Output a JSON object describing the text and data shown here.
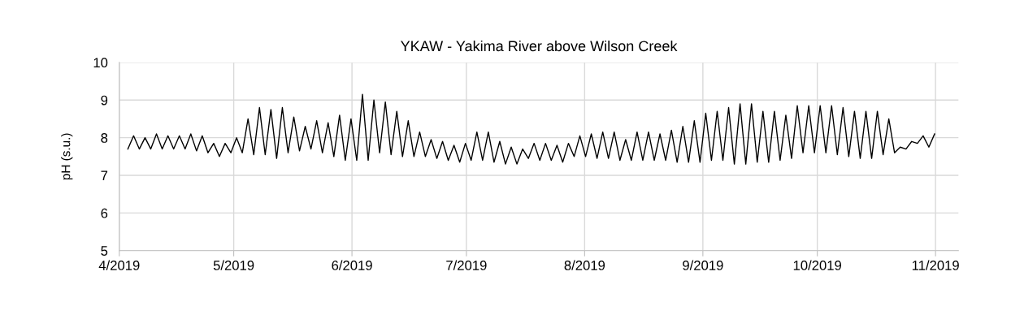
{
  "chart_data": {
    "type": "line",
    "title": "YKAW - Yakima River above Wilson Creek",
    "ylabel": "pH (s.u.)",
    "xlim": [
      "2019-04-01",
      "2019-11-07"
    ],
    "xticks": [
      {
        "value": "2019-04-01",
        "label": "4/2019"
      },
      {
        "value": "2019-05-01",
        "label": "5/2019"
      },
      {
        "value": "2019-06-01",
        "label": "6/2019"
      },
      {
        "value": "2019-07-01",
        "label": "7/2019"
      },
      {
        "value": "2019-08-01",
        "label": "8/2019"
      },
      {
        "value": "2019-09-01",
        "label": "9/2019"
      },
      {
        "value": "2019-10-01",
        "label": "10/2019"
      },
      {
        "value": "2019-11-01",
        "label": "11/2019"
      }
    ],
    "ylim": [
      5,
      10
    ],
    "yticks": [
      5,
      6,
      7,
      8,
      9,
      10
    ],
    "grid": true,
    "marker": "none",
    "line_style": "solid",
    "series": [
      {
        "color": "#000000",
        "x": [
          "2019-04-03T06:00",
          "2019-04-04T18:00",
          "2019-04-06T06:00",
          "2019-04-07T18:00",
          "2019-04-09T06:00",
          "2019-04-10T18:00",
          "2019-04-12T06:00",
          "2019-04-13T18:00",
          "2019-04-15T06:00",
          "2019-04-16T18:00",
          "2019-04-18T06:00",
          "2019-04-19T18:00",
          "2019-04-21T06:00",
          "2019-04-22T18:00",
          "2019-04-24T06:00",
          "2019-04-25T18:00",
          "2019-04-27T06:00",
          "2019-04-28T18:00",
          "2019-04-30T06:00",
          "2019-05-01T18:00",
          "2019-05-03T06:00",
          "2019-05-04T18:00",
          "2019-05-06T06:00",
          "2019-05-07T18:00",
          "2019-05-09T06:00",
          "2019-05-10T18:00",
          "2019-05-12T06:00",
          "2019-05-13T18:00",
          "2019-05-15T06:00",
          "2019-05-16T18:00",
          "2019-05-18T06:00",
          "2019-05-19T18:00",
          "2019-05-21T06:00",
          "2019-05-22T18:00",
          "2019-05-24T06:00",
          "2019-05-25T18:00",
          "2019-05-27T06:00",
          "2019-05-28T18:00",
          "2019-05-30T06:00",
          "2019-05-31T18:00",
          "2019-06-02T06:00",
          "2019-06-03T18:00",
          "2019-06-05T06:00",
          "2019-06-06T18:00",
          "2019-06-08T06:00",
          "2019-06-09T18:00",
          "2019-06-11T06:00",
          "2019-06-12T18:00",
          "2019-06-14T06:00",
          "2019-06-15T18:00",
          "2019-06-17T06:00",
          "2019-06-18T18:00",
          "2019-06-20T06:00",
          "2019-06-21T18:00",
          "2019-06-23T06:00",
          "2019-06-24T18:00",
          "2019-06-26T06:00",
          "2019-06-27T18:00",
          "2019-06-29T06:00",
          "2019-06-30T18:00",
          "2019-07-02T06:00",
          "2019-07-03T18:00",
          "2019-07-05T06:00",
          "2019-07-06T18:00",
          "2019-07-08T06:00",
          "2019-07-09T18:00",
          "2019-07-11T06:00",
          "2019-07-12T18:00",
          "2019-07-14T06:00",
          "2019-07-15T18:00",
          "2019-07-17T06:00",
          "2019-07-18T18:00",
          "2019-07-20T06:00",
          "2019-07-21T18:00",
          "2019-07-23T06:00",
          "2019-07-24T18:00",
          "2019-07-26T06:00",
          "2019-07-27T18:00",
          "2019-07-29T06:00",
          "2019-07-30T18:00",
          "2019-08-01T06:00",
          "2019-08-02T18:00",
          "2019-08-04T06:00",
          "2019-08-05T18:00",
          "2019-08-07T06:00",
          "2019-08-08T18:00",
          "2019-08-10T06:00",
          "2019-08-11T18:00",
          "2019-08-13T06:00",
          "2019-08-14T18:00",
          "2019-08-16T06:00",
          "2019-08-17T18:00",
          "2019-08-19T06:00",
          "2019-08-20T18:00",
          "2019-08-22T06:00",
          "2019-08-23T18:00",
          "2019-08-25T06:00",
          "2019-08-26T18:00",
          "2019-08-28T06:00",
          "2019-08-29T18:00",
          "2019-08-31T06:00",
          "2019-09-01T18:00",
          "2019-09-03T06:00",
          "2019-09-04T18:00",
          "2019-09-06T06:00",
          "2019-09-07T18:00",
          "2019-09-09T06:00",
          "2019-09-10T18:00",
          "2019-09-12T06:00",
          "2019-09-13T18:00",
          "2019-09-15T06:00",
          "2019-09-16T18:00",
          "2019-09-18T06:00",
          "2019-09-19T18:00",
          "2019-09-21T06:00",
          "2019-09-22T18:00",
          "2019-09-24T06:00",
          "2019-09-25T18:00",
          "2019-09-27T06:00",
          "2019-09-28T18:00",
          "2019-09-30T06:00",
          "2019-10-01T18:00",
          "2019-10-03T06:00",
          "2019-10-04T18:00",
          "2019-10-06T06:00",
          "2019-10-07T18:00",
          "2019-10-09T06:00",
          "2019-10-10T18:00",
          "2019-10-12T06:00",
          "2019-10-13T18:00",
          "2019-10-15T06:00",
          "2019-10-16T18:00",
          "2019-10-18T06:00",
          "2019-10-19T18:00",
          "2019-10-21T06:00",
          "2019-10-22T18:00",
          "2019-10-24T06:00",
          "2019-10-25T18:00",
          "2019-10-27T06:00",
          "2019-10-28T18:00",
          "2019-10-30T06:00",
          "2019-10-31T18:00"
        ],
        "values": [
          7.7,
          8.05,
          7.7,
          8.0,
          7.7,
          8.1,
          7.7,
          8.05,
          7.7,
          8.05,
          7.7,
          8.1,
          7.65,
          8.05,
          7.6,
          7.85,
          7.5,
          7.85,
          7.6,
          8.0,
          7.6,
          8.5,
          7.55,
          8.8,
          7.55,
          8.75,
          7.45,
          8.8,
          7.6,
          8.55,
          7.65,
          8.3,
          7.7,
          8.45,
          7.6,
          8.4,
          7.5,
          8.6,
          7.4,
          8.5,
          7.4,
          9.15,
          7.4,
          9.0,
          7.6,
          8.95,
          7.55,
          8.7,
          7.5,
          8.45,
          7.5,
          8.15,
          7.5,
          7.95,
          7.45,
          7.9,
          7.4,
          7.8,
          7.35,
          7.85,
          7.4,
          8.15,
          7.4,
          8.15,
          7.35,
          7.9,
          7.3,
          7.75,
          7.3,
          7.7,
          7.45,
          7.85,
          7.4,
          7.85,
          7.4,
          7.8,
          7.35,
          7.85,
          7.5,
          8.05,
          7.5,
          8.1,
          7.45,
          8.15,
          7.45,
          8.15,
          7.4,
          7.95,
          7.4,
          8.15,
          7.4,
          8.15,
          7.4,
          8.1,
          7.4,
          8.2,
          7.35,
          8.3,
          7.35,
          8.45,
          7.35,
          8.65,
          7.4,
          8.7,
          7.4,
          8.8,
          7.3,
          8.9,
          7.3,
          8.9,
          7.35,
          8.7,
          7.35,
          8.7,
          7.4,
          8.6,
          7.45,
          8.85,
          7.6,
          8.85,
          7.6,
          8.85,
          7.6,
          8.85,
          7.55,
          8.8,
          7.5,
          8.7,
          7.45,
          8.7,
          7.45,
          8.7,
          7.55,
          8.5,
          7.6,
          7.75,
          7.7,
          7.9,
          7.85,
          8.05,
          7.75,
          8.1
        ]
      }
    ]
  }
}
